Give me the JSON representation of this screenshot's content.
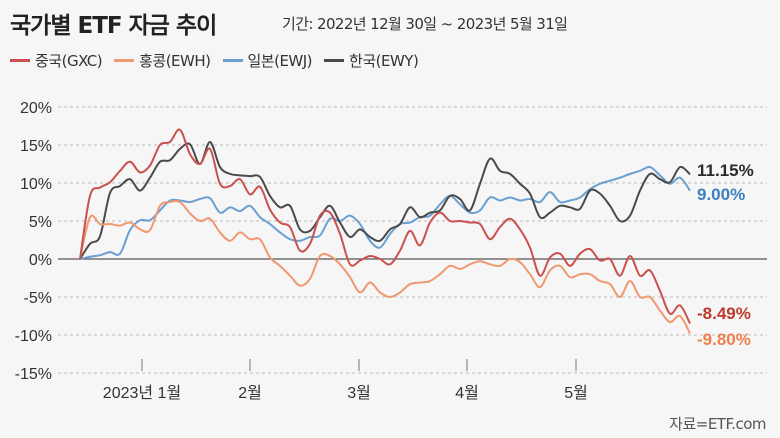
{
  "title": "국가별 ETF 자금 추이",
  "subtitle": "기간: 2022년 12월 30일 ~ 2023년 5월 31일",
  "source": "자료=ETF.com",
  "chart_data": {
    "type": "line",
    "title": "국가별 ETF 자금 추이",
    "period": "기간: 2022년 12월 30일 ~ 2023년 5월 31일",
    "xlabel": "",
    "ylabel": "",
    "ylim": [
      -15,
      20
    ],
    "yticks": [
      20,
      15,
      10,
      5,
      0,
      -5,
      -10,
      -15
    ],
    "ytick_labels": [
      "20%",
      "15%",
      "10%",
      "5%",
      "0%",
      "-5%",
      "-10%",
      "-15%"
    ],
    "xtick_labels": [
      "2023년 1월",
      "2월",
      "3월",
      "4월",
      "5월"
    ],
    "grid": true,
    "legend_position": "top-left",
    "series": [
      {
        "name": "중국(GXC)",
        "color": "#c9514f",
        "label_color": "#c0392b",
        "end_label": "-8.49%",
        "values": [
          0,
          8.3,
          9.4,
          10.1,
          11.6,
          12.8,
          11.4,
          12.3,
          15.0,
          15.4,
          17.0,
          13.8,
          12.5,
          14.5,
          9.9,
          9.6,
          10.5,
          8.5,
          9.5,
          6.5,
          4.8,
          4.2,
          1.1,
          2.0,
          5.7,
          6.1,
          3.3,
          -0.7,
          -0.2,
          0.4,
          0,
          -0.7,
          1.1,
          3.7,
          1.8,
          4.8,
          6.1,
          5.0,
          5.0,
          4.8,
          4.6,
          2.6,
          4.2,
          5.3,
          3.9,
          1.5,
          -2.2,
          0.2,
          0.7,
          -0.9,
          0.7,
          1.3,
          -0.2,
          0,
          -2.2,
          0.4,
          -2.2,
          -1.5,
          -4.2,
          -7.2,
          -6.1,
          -8.49
        ]
      },
      {
        "name": "홍콩(EWH)",
        "color": "#f0986e",
        "label_color": "#ef7f4e",
        "end_label": "-9.80%",
        "values": [
          0,
          5.5,
          4.6,
          4.6,
          4.4,
          4.8,
          3.9,
          3.8,
          7.0,
          7.5,
          7.5,
          6.0,
          5.0,
          5.3,
          3.5,
          2.4,
          3.5,
          2.6,
          2.6,
          0.2,
          -0.9,
          -2.2,
          -3.5,
          -2.6,
          0.4,
          0.4,
          -0.7,
          -2.4,
          -4.4,
          -3.1,
          -4.4,
          -5.0,
          -4.4,
          -3.3,
          -3.1,
          -2.9,
          -2.0,
          -0.9,
          -1.3,
          -0.7,
          -0.3,
          -0.7,
          -0.9,
          0,
          -0.4,
          -2.0,
          -3.7,
          -1.5,
          -0.9,
          -2.4,
          -2.0,
          -2.0,
          -2.9,
          -3.3,
          -5.0,
          -2.9,
          -5.0,
          -5.0,
          -6.8,
          -8.3,
          -7.5,
          -9.8
        ]
      },
      {
        "name": "일본(EWJ)",
        "color": "#6a9fd2",
        "label_color": "#3f7fc1",
        "end_label": "9.00%",
        "values": [
          0,
          0.3,
          0.5,
          0.9,
          0.7,
          3.8,
          5.1,
          5.1,
          6.4,
          7.7,
          7.7,
          7.5,
          7.9,
          8.0,
          6.1,
          6.8,
          6.3,
          7.0,
          5.5,
          4.6,
          3.5,
          2.6,
          2.4,
          2.9,
          3.1,
          5.3,
          5.0,
          5.7,
          4.6,
          2.4,
          1.5,
          3.3,
          4.6,
          4.8,
          5.5,
          5.7,
          7.2,
          8.3,
          7.2,
          6.1,
          6.4,
          8.1,
          7.7,
          8.1,
          7.7,
          7.9,
          7.5,
          8.8,
          7.5,
          7.7,
          8.1,
          9.2,
          9.9,
          10.3,
          10.7,
          11.2,
          11.6,
          12.1,
          11.0,
          9.9,
          10.7,
          9.0
        ]
      },
      {
        "name": "한국(EWY)",
        "color": "#4a4a4a",
        "label_color": "#2a2a2a",
        "end_label": "11.15%",
        "values": [
          0,
          2.0,
          3.0,
          8.7,
          9.6,
          10.5,
          9.0,
          10.7,
          12.8,
          13.0,
          14.5,
          15.1,
          12.5,
          15.4,
          12.1,
          11.2,
          11.0,
          10.9,
          10.8,
          8.3,
          6.8,
          7.0,
          3.9,
          3.7,
          5.5,
          7.0,
          4.8,
          2.9,
          3.9,
          2.9,
          2.4,
          3.9,
          4.6,
          6.8,
          5.5,
          6.1,
          6.4,
          8.3,
          7.9,
          6.4,
          9.9,
          13.2,
          11.6,
          11.2,
          9.9,
          8.6,
          5.5,
          6.1,
          7.0,
          6.8,
          6.6,
          9.0,
          8.6,
          7.0,
          5.0,
          5.7,
          9.0,
          11.2,
          10.5,
          10.1,
          12.1,
          11.15
        ]
      }
    ]
  }
}
